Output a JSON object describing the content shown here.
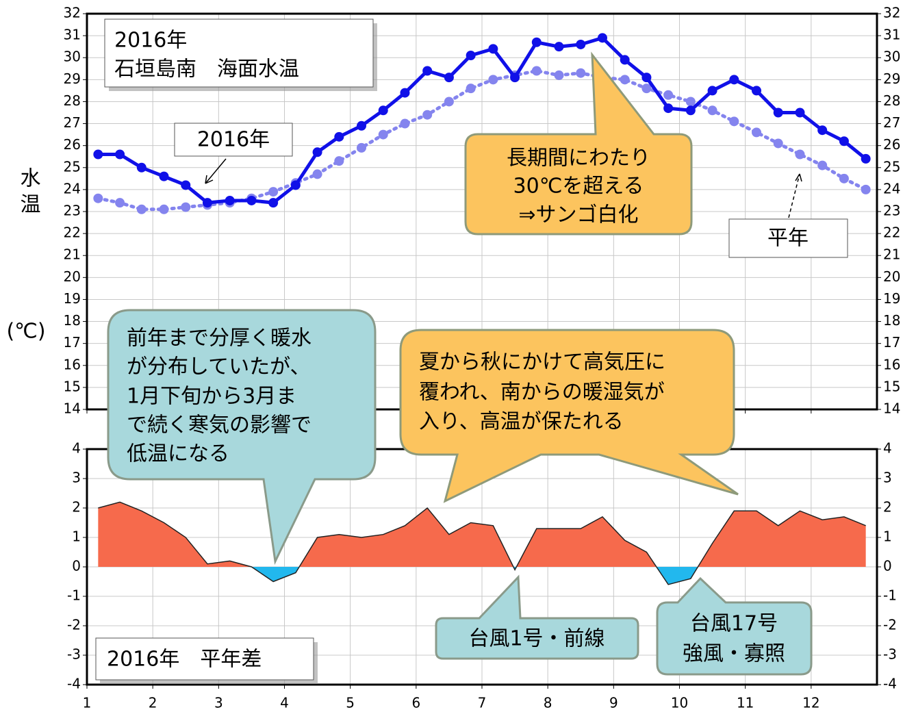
{
  "chart_data": [
    {
      "type": "line",
      "y_label": "水温",
      "y_unit": "(℃)",
      "x": [
        1.17,
        1.5,
        1.83,
        2.17,
        2.5,
        2.83,
        3.17,
        3.5,
        3.83,
        4.17,
        4.5,
        4.83,
        5.17,
        5.5,
        5.83,
        6.17,
        6.5,
        6.83,
        7.17,
        7.5,
        7.83,
        8.17,
        8.5,
        8.83,
        9.17,
        9.5,
        9.83,
        10.17,
        10.5,
        10.83,
        11.17,
        11.5,
        11.83,
        12.17,
        12.5,
        12.83
      ],
      "series": [
        {
          "color": "#1010e8",
          "values": [
            25.6,
            25.6,
            25.0,
            24.6,
            24.2,
            23.4,
            23.5,
            23.5,
            23.4,
            24.2,
            25.7,
            26.4,
            26.9,
            27.6,
            28.4,
            29.4,
            29.1,
            30.1,
            30.4,
            29.1,
            30.7,
            30.5,
            30.6,
            30.9,
            29.9,
            29.1,
            27.7,
            27.6,
            28.5,
            29.0,
            28.5,
            27.5,
            27.5,
            26.7,
            26.2,
            25.4
          ]
        },
        {
          "color": "#8484ee",
          "values": [
            23.6,
            23.4,
            23.1,
            23.1,
            23.2,
            23.3,
            23.4,
            23.6,
            23.9,
            24.3,
            24.7,
            25.3,
            25.9,
            26.5,
            27.0,
            27.4,
            28.0,
            28.6,
            29.0,
            29.2,
            29.4,
            29.2,
            29.3,
            29.1,
            29.0,
            28.6,
            28.3,
            28.0,
            27.6,
            27.1,
            26.6,
            26.1,
            25.6,
            25.1,
            24.5,
            24.0
          ]
        }
      ],
      "xlim": [
        1,
        13
      ],
      "xticks": [
        1,
        2,
        3,
        4,
        5,
        6,
        7,
        8,
        9,
        10,
        11,
        12
      ],
      "ylim": [
        14,
        32
      ],
      "yticks": [
        14,
        15,
        16,
        17,
        18,
        19,
        20,
        21,
        22,
        23,
        24,
        25,
        26,
        27,
        28,
        29,
        30,
        31,
        32
      ],
      "grid": true,
      "annotations": {
        "title": [
          "2016年",
          "石垣島南　海面水温"
        ],
        "label_2016": "2016年",
        "label_normal": "平年",
        "coral": [
          "長期間にわたり",
          "30℃を超える",
          "⇒サンゴ白化"
        ],
        "cold": [
          "前年まで分厚く暖水",
          "が分布していたが、",
          "1月下旬から3月ま",
          "で続く寒気の影響で",
          "低温になる"
        ],
        "warm": [
          "夏から秋にかけて高気圧に",
          "覆われ、南からの暖湿気が",
          "入り、高温が保たれる"
        ]
      }
    },
    {
      "type": "area",
      "x": [
        1.17,
        1.5,
        1.83,
        2.17,
        2.5,
        2.83,
        3.17,
        3.5,
        3.83,
        4.17,
        4.5,
        4.83,
        5.17,
        5.5,
        5.83,
        6.17,
        6.5,
        6.83,
        7.17,
        7.5,
        7.83,
        8.17,
        8.5,
        8.83,
        9.17,
        9.5,
        9.83,
        10.17,
        10.5,
        10.83,
        11.17,
        11.5,
        11.83,
        12.17,
        12.5,
        12.83
      ],
      "values": [
        2.0,
        2.2,
        1.9,
        1.5,
        1.0,
        0.1,
        0.2,
        0.0,
        -0.5,
        -0.2,
        1.0,
        1.1,
        1.0,
        1.1,
        1.4,
        2.0,
        1.1,
        1.5,
        1.4,
        -0.1,
        1.3,
        1.3,
        1.3,
        1.7,
        0.9,
        0.5,
        -0.6,
        -0.4,
        0.8,
        1.9,
        1.9,
        1.4,
        1.9,
        1.6,
        1.7,
        1.4
      ],
      "positive_color": "#f66a4c",
      "negative_color": "#22b8ee",
      "xlim": [
        1,
        13
      ],
      "xticks": [
        1,
        2,
        3,
        4,
        5,
        6,
        7,
        8,
        9,
        10,
        11,
        12
      ],
      "ylim": [
        -4,
        4
      ],
      "yticks": [
        -4,
        -3,
        -2,
        -1,
        0,
        1,
        2,
        3,
        4
      ],
      "grid": true,
      "annotations": {
        "title": "2016年　平年差",
        "typhoon1": "台風1号・前線",
        "typhoon17": [
          "台風17号",
          "強風・寡照"
        ]
      }
    }
  ]
}
